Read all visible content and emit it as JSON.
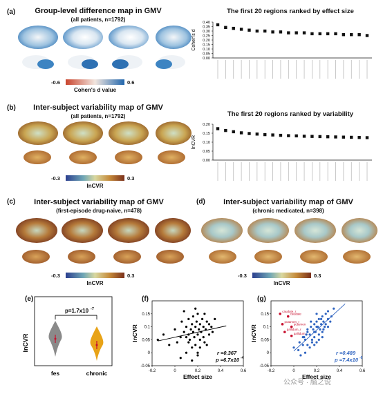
{
  "colors": {
    "cohen_low": "#2166ac",
    "cohen_mid": "#f7f7f7",
    "cohen_high": "#1f6fb5",
    "lncvr_low": "#2b3f8f",
    "lncvr_mid": "#d9d8a0",
    "lncvr_high": "#7a2f1a",
    "brain_orange": "#c98a3a",
    "fes_violin": "#8a8a8a",
    "chronic_violin": "#e8a317",
    "scatter_f": "#000000",
    "scatter_g": "#2f64c0",
    "highlight_red": "#c8102e"
  },
  "panel_a": {
    "label": "(a)",
    "title": "Group-level difference map in GMV",
    "subtitle": "(all patients, n=1792)",
    "cbar_min": "-0.6",
    "cbar_max": "0.6",
    "cbar_label": "Cohen's d value"
  },
  "panel_a_chart": {
    "title": "The first 20 regions ranked by effect size",
    "ylabel": "Cohen's d",
    "yticks": [
      "0.40",
      "0.35",
      "0.30",
      "0.25",
      "0.20",
      "0.15",
      "0.10",
      "0.05",
      "0.00"
    ]
  },
  "panel_b": {
    "label": "(b)",
    "title": "Inter-subject variability map of GMV",
    "subtitle": "(all patients, n=1792)",
    "cbar_min": "-0.3",
    "cbar_max": "0.3",
    "cbar_label": "lnCVR"
  },
  "panel_b_chart": {
    "title": "The first 20 regions ranked by variability",
    "ylabel": "lnCVR",
    "yticks": [
      "0.20",
      "0.15",
      "0.10",
      "0.05",
      "0.00"
    ]
  },
  "panel_c": {
    "label": "(c)",
    "title": "Inter-subject variability map of GMV",
    "subtitle": "(first-episode drug-naive, n=478)",
    "cbar_min": "-0.3",
    "cbar_max": "0.3",
    "cbar_label": "lnCVR"
  },
  "panel_d": {
    "label": "(d)",
    "title": "Inter-subject variability map of GMV",
    "subtitle": "(chronic medicated, n=398)",
    "cbar_min": "-0.3",
    "cbar_max": "0.3",
    "cbar_label": "lnCVR"
  },
  "panel_e": {
    "label": "(e)",
    "ylabel": "lnCVR",
    "pvalue": "p=1.7x10",
    "pexp": "-7",
    "cat1": "fes",
    "cat2": "chronic"
  },
  "panel_f": {
    "label": "(f)",
    "ylabel": "lnCVR",
    "xlabel": "Effect size",
    "r_text": "r =0.367",
    "p_text": "p =6.7x10",
    "p_exp": "-4"
  },
  "panel_g": {
    "label": "(g)",
    "ylabel": "lnCVR",
    "xlabel": "Effect size",
    "r_text": "r =0.489",
    "p_text": "p =7.4x10",
    "p_exp": "-6",
    "annotations": [
      "caudate_r",
      "caudate",
      "putamen_r",
      "putamen",
      "pallidum_r",
      "pallidum"
    ]
  },
  "watermark": "公众号 · 脑之说",
  "chart_data": [
    {
      "type": "scatter",
      "title": "The first 20 regions ranked by effect size",
      "ylabel": "Cohen's d",
      "ylim": [
        0,
        0.4
      ],
      "x": [
        1,
        2,
        3,
        4,
        5,
        6,
        7,
        8,
        9,
        10,
        11,
        12,
        13,
        14,
        15,
        16,
        17,
        18,
        19,
        20
      ],
      "values": [
        0.37,
        0.34,
        0.33,
        0.32,
        0.31,
        0.3,
        0.3,
        0.29,
        0.29,
        0.28,
        0.28,
        0.28,
        0.27,
        0.27,
        0.27,
        0.27,
        0.26,
        0.26,
        0.26,
        0.25
      ]
    },
    {
      "type": "scatter",
      "title": "The first 20 regions ranked by variability",
      "ylabel": "lnCVR",
      "ylim": [
        0,
        0.2
      ],
      "x": [
        1,
        2,
        3,
        4,
        5,
        6,
        7,
        8,
        9,
        10,
        11,
        12,
        13,
        14,
        15,
        16,
        17,
        18,
        19,
        20
      ],
      "values": [
        0.175,
        0.165,
        0.158,
        0.152,
        0.148,
        0.145,
        0.142,
        0.14,
        0.138,
        0.136,
        0.135,
        0.133,
        0.132,
        0.131,
        0.13,
        0.129,
        0.128,
        0.127,
        0.126,
        0.125
      ]
    },
    {
      "type": "scatter",
      "xlabel": "Effect size",
      "ylabel": "lnCVR",
      "xlim": [
        -0.2,
        0.6
      ],
      "ylim": [
        -0.05,
        0.2
      ],
      "x": [
        -0.15,
        -0.1,
        -0.05,
        0.0,
        0.02,
        0.05,
        0.06,
        0.08,
        0.1,
        0.1,
        0.12,
        0.12,
        0.13,
        0.14,
        0.15,
        0.15,
        0.16,
        0.16,
        0.17,
        0.18,
        0.18,
        0.19,
        0.2,
        0.2,
        0.2,
        0.21,
        0.22,
        0.22,
        0.23,
        0.24,
        0.25,
        0.25,
        0.26,
        0.27,
        0.28,
        0.3,
        0.3,
        0.32,
        0.33,
        0.35,
        0.08,
        0.12,
        0.18,
        0.22,
        0.26,
        0.05,
        0.15,
        0.2,
        0.28,
        0.1
      ],
      "y": [
        0.05,
        0.07,
        0.03,
        0.09,
        0.04,
        0.06,
        0.12,
        0.08,
        0.1,
        0.0,
        0.07,
        0.13,
        0.05,
        0.09,
        0.11,
        0.02,
        0.08,
        0.14,
        0.06,
        0.1,
        0.03,
        0.12,
        0.07,
        0.15,
        -0.01,
        0.09,
        0.05,
        0.11,
        0.08,
        0.13,
        0.06,
        0.1,
        0.04,
        0.09,
        0.12,
        0.07,
        0.11,
        0.1,
        0.08,
        0.13,
        0.16,
        0.04,
        0.17,
        0.02,
        0.15,
        -0.02,
        -0.03,
        0.0,
        0.03,
        0.06
      ]
    },
    {
      "type": "scatter",
      "xlabel": "Effect size",
      "ylabel": "lnCVR",
      "xlim": [
        -0.2,
        0.6
      ],
      "ylim": [
        -0.05,
        0.2
      ],
      "x": [
        0.0,
        0.05,
        0.08,
        0.1,
        0.12,
        0.12,
        0.14,
        0.15,
        0.16,
        0.17,
        0.18,
        0.18,
        0.19,
        0.2,
        0.2,
        0.21,
        0.22,
        0.22,
        0.23,
        0.24,
        0.25,
        0.25,
        0.26,
        0.27,
        0.28,
        0.3,
        0.3,
        0.32,
        0.33,
        0.35,
        0.06,
        0.1,
        0.14,
        0.18,
        0.22,
        0.26,
        0.09,
        0.16,
        0.2,
        0.28,
        0.12,
        0.24,
        0.3,
        0.15,
        0.2,
        0.04,
        0.08,
        0.11,
        0.18,
        0.25
      ],
      "y": [
        0.02,
        0.04,
        0.06,
        0.05,
        0.08,
        0.03,
        0.07,
        0.1,
        0.05,
        0.09,
        0.11,
        0.06,
        0.08,
        0.12,
        0.04,
        0.1,
        0.07,
        0.13,
        0.09,
        0.11,
        0.14,
        0.08,
        0.12,
        0.1,
        0.15,
        0.13,
        0.16,
        0.12,
        0.14,
        0.17,
        -0.01,
        0.0,
        0.02,
        0.03,
        0.05,
        0.09,
        0.06,
        0.04,
        0.1,
        0.11,
        0.09,
        0.13,
        0.1,
        0.12,
        0.15,
        0.01,
        0.03,
        0.07,
        0.08,
        0.06
      ],
      "highlight_x": [
        -0.12,
        -0.05,
        -0.1,
        -0.02,
        -0.08,
        -0.02
      ],
      "highlight_y": [
        0.15,
        0.14,
        0.11,
        0.1,
        0.08,
        0.065
      ]
    },
    {
      "type": "violin",
      "categories": [
        "fes",
        "chronic"
      ],
      "values": [
        0.12,
        0.04
      ]
    }
  ]
}
